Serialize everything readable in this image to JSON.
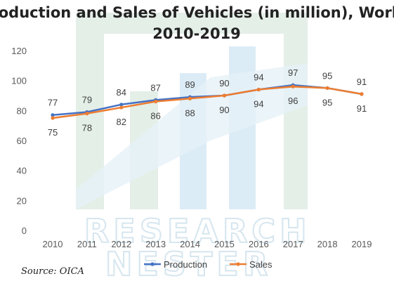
{
  "chart_data": {
    "type": "line",
    "title_line1": "Production and Sales of Vehicles (in million), World,",
    "title_line2": "2010-2019",
    "categories": [
      "2010",
      "2011",
      "2012",
      "2013",
      "2014",
      "2015",
      "2016",
      "2017",
      "2018",
      "2019"
    ],
    "ylim": [
      0,
      120
    ],
    "yticks": [
      0,
      20,
      40,
      60,
      80,
      100,
      120
    ],
    "grid": false,
    "legend_position": "bottom",
    "series": [
      {
        "name": "Production",
        "color": "#4472c4",
        "values": [
          77,
          79,
          84,
          87,
          89,
          90,
          94,
          97,
          95,
          91
        ]
      },
      {
        "name": "Sales",
        "color": "#ed7d31",
        "values": [
          75,
          78,
          82,
          86,
          88,
          90,
          94,
          96,
          95,
          91
        ]
      }
    ]
  },
  "watermark": {
    "line1": "RESEARCH",
    "line2": "NESTER"
  },
  "source": "Source: OICA"
}
